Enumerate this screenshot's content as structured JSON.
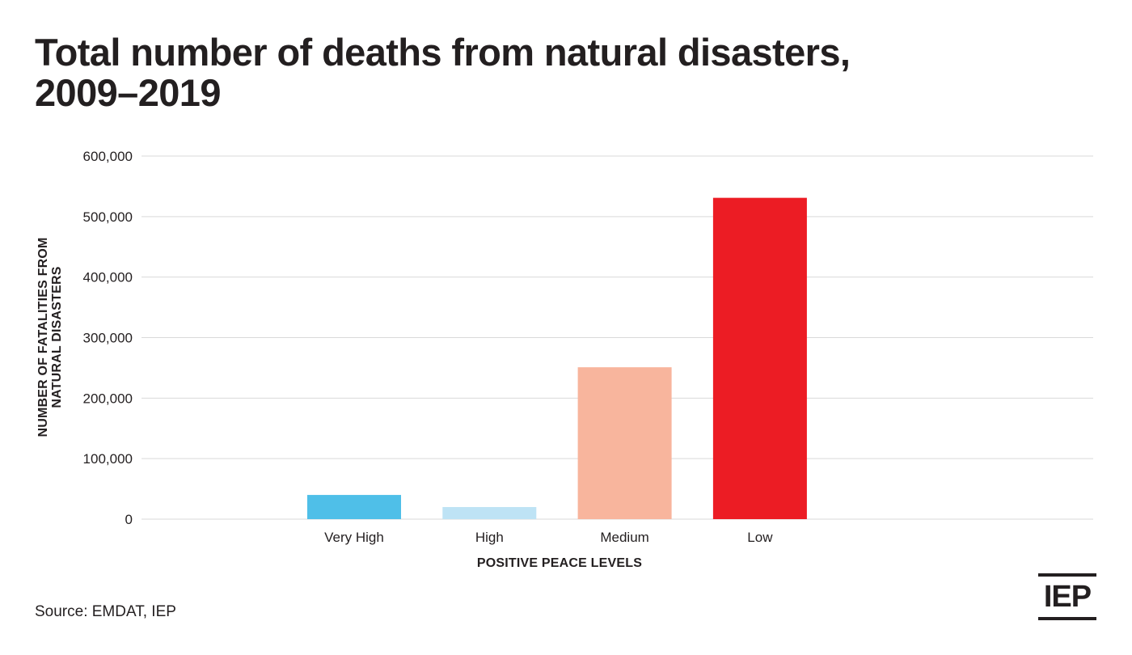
{
  "chart_data": {
    "type": "bar",
    "title_lines": [
      "Total number of deaths from natural disasters,",
      "2009–2019"
    ],
    "categories": [
      "Very High",
      "High",
      "Medium",
      "Low"
    ],
    "values": [
      40000,
      20000,
      251000,
      531000
    ],
    "colors": [
      "#4fbfe8",
      "#bee3f5",
      "#f8b59d",
      "#ec1c24"
    ],
    "xlabel": "POSITIVE PEACE LEVELS",
    "ylabel_lines": [
      "NUMBER OF FATALITIES FROM",
      "NATURAL DISASTERS"
    ],
    "ylim": [
      0,
      600000
    ],
    "yticks": [
      0,
      100000,
      200000,
      300000,
      400000,
      500000,
      600000
    ],
    "ytick_labels": [
      "0",
      "100,000",
      "200,000",
      "300,000",
      "400,000",
      "500,000",
      "600,000"
    ],
    "grid": true,
    "gridline_color": "#d9d9d9"
  },
  "source": "Source: EMDAT, IEP",
  "logo_text": "IEP"
}
